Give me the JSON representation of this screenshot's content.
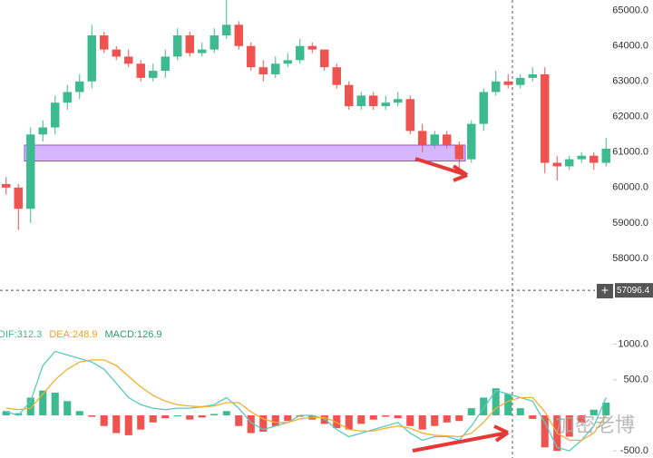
{
  "chart_data": [
    {
      "type": "candlestick",
      "up_color": "#3dba8f",
      "down_color": "#ef5350",
      "open": [
        60100,
        60000,
        59400,
        61500,
        61700,
        62400,
        62700,
        63000,
        64300,
        63900,
        63700,
        63500,
        63100,
        63300,
        63700,
        64300,
        63800,
        63900,
        64300,
        64600,
        64000,
        63400,
        63200,
        63500,
        63600,
        64000,
        63900,
        63400,
        62900,
        62300,
        62600,
        62300,
        62400,
        62500,
        61600,
        61200,
        61500,
        61200,
        60800,
        61800,
        62700,
        63000,
        62900,
        63100,
        63200,
        60700,
        60600,
        60800,
        60900,
        60700
      ],
      "high": [
        60300,
        60100,
        61700,
        61900,
        62600,
        62900,
        63200,
        64600,
        64400,
        64000,
        63900,
        63600,
        63500,
        63900,
        64500,
        64400,
        64100,
        64500,
        65300,
        64700,
        64100,
        63600,
        63700,
        63800,
        64200,
        64100,
        63900,
        63500,
        63000,
        62700,
        62700,
        62600,
        62700,
        62600,
        61800,
        61600,
        61600,
        61300,
        61900,
        62800,
        63300,
        63200,
        63200,
        63400,
        63400,
        60900,
        60900,
        61000,
        61000,
        61400
      ],
      "low": [
        59800,
        58800,
        59000,
        61300,
        61500,
        62200,
        62500,
        62800,
        63800,
        63600,
        63400,
        63000,
        63000,
        63100,
        63600,
        63700,
        63700,
        63800,
        64200,
        63900,
        63300,
        63000,
        63100,
        63400,
        63500,
        63800,
        63300,
        62800,
        62200,
        62200,
        62200,
        62200,
        62300,
        61500,
        61000,
        61100,
        61100,
        60500,
        60700,
        61600,
        62600,
        62800,
        62800,
        63000,
        60400,
        60200,
        60500,
        60700,
        60500,
        60600
      ],
      "close": [
        60000,
        59400,
        61500,
        61700,
        62400,
        62700,
        63000,
        64300,
        63900,
        63700,
        63500,
        63100,
        63300,
        63700,
        64300,
        63800,
        63900,
        64300,
        64600,
        64000,
        63400,
        63200,
        63500,
        63600,
        64000,
        63900,
        63400,
        62900,
        62300,
        62600,
        62300,
        62400,
        62500,
        61600,
        61200,
        61500,
        61200,
        60800,
        61800,
        62700,
        63000,
        62900,
        63100,
        63200,
        60700,
        60600,
        60800,
        60900,
        60700,
        61100
      ],
      "ylim": [
        57100,
        65300
      ],
      "yticks": [
        {
          "value": 58000,
          "label": "58000.0"
        },
        {
          "value": 59000,
          "label": "59000.0"
        },
        {
          "value": 60000,
          "label": "60000.0"
        },
        {
          "value": 61000,
          "label": "61000.0"
        },
        {
          "value": 62000,
          "label": "62000.0"
        },
        {
          "value": 63000,
          "label": "63000.0"
        },
        {
          "value": 64000,
          "label": "64000.0"
        },
        {
          "value": 65000,
          "label": "65000.0"
        }
      ],
      "highlight_zone": {
        "low": 60750,
        "high": 61200,
        "from": 2,
        "to": 37,
        "color": "#b57bff"
      },
      "crosshair": 57096.4
    },
    {
      "type": "macd",
      "legend": [
        "DIF:312.3",
        "DEA:248.9",
        "MACD:126.9"
      ],
      "legend_colors": [
        "#3dba8f",
        "#f0a020",
        "#2a9d6f"
      ],
      "series": [
        {
          "color": "#5cc8c0",
          "values": [
            50,
            0,
            200,
            700,
            900,
            850,
            800,
            750,
            650,
            450,
            250,
            150,
            100,
            80,
            100,
            100,
            120,
            150,
            250,
            100,
            -100,
            -200,
            -150,
            -100,
            0,
            0,
            -50,
            -200,
            -300,
            -250,
            -200,
            -150,
            -100,
            -250,
            -350,
            -300,
            -300,
            -350,
            -150,
            100,
            350,
            300,
            250,
            200,
            -100,
            -450,
            -500,
            -350,
            -150,
            250
          ]
        },
        {
          "color": "#f0b030",
          "values": [
            100,
            80,
            100,
            300,
            500,
            650,
            750,
            780,
            780,
            700,
            550,
            400,
            280,
            200,
            150,
            130,
            120,
            130,
            180,
            180,
            50,
            -50,
            -100,
            -100,
            -50,
            -30,
            -30,
            -100,
            -200,
            -220,
            -220,
            -180,
            -150,
            -180,
            -250,
            -280,
            -290,
            -300,
            -250,
            -100,
            100,
            200,
            250,
            250,
            50,
            -250,
            -350,
            -350,
            -250,
            0
          ]
        }
      ],
      "histogram": [
        60,
        30,
        250,
        350,
        320,
        200,
        60,
        -20,
        -150,
        -250,
        -280,
        -200,
        -100,
        -40,
        0,
        -60,
        -30,
        20,
        60,
        -150,
        -250,
        -230,
        -150,
        -80,
        -20,
        -60,
        -120,
        -180,
        -200,
        -120,
        -60,
        -20,
        -40,
        -150,
        -200,
        -150,
        -100,
        -80,
        100,
        250,
        380,
        300,
        100,
        -50,
        -450,
        -500,
        -300,
        -100,
        80,
        180
      ],
      "up_color": "#3dba8f",
      "down_color": "#ef5350",
      "ylim": [
        -600,
        1250
      ],
      "yticks": [
        {
          "value": -500,
          "label": "-500.0"
        },
        {
          "value": 500,
          "label": "500.0"
        },
        {
          "value": 1000,
          "label": "1000.0"
        }
      ]
    }
  ],
  "watermark": "加密老博"
}
